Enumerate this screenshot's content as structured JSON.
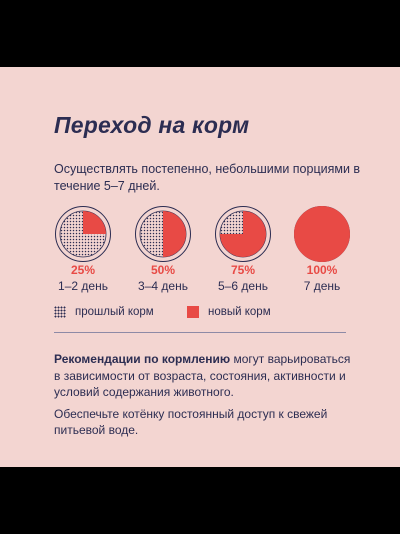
{
  "title": "Переход на корм",
  "intro": "Осуществлять постепенно, небольшими порциями в течение 5–7 дней.",
  "stages": [
    {
      "percent_label": "25%",
      "days": "1–2 день",
      "new_fraction": 0.25
    },
    {
      "percent_label": "50%",
      "days": "3–4 день",
      "new_fraction": 0.5
    },
    {
      "percent_label": "75%",
      "days": "5–6 день",
      "new_fraction": 0.75
    },
    {
      "percent_label": "100%",
      "days": "7 день",
      "new_fraction": 1.0
    }
  ],
  "legend": {
    "old": "прошлый корм",
    "new": "новый корм"
  },
  "colors": {
    "background": "#f3d5d1",
    "text": "#2c2d52",
    "accent": "#e84a45"
  },
  "recommendation": {
    "bold": "Рекомендации по кормлению",
    "rest": " могут варьироваться в зависимости от возраста, состояния, активности и условий содержания животного.",
    "second": "Обеспечьте котёнку постоянный доступ к свежей питьевой воде."
  }
}
